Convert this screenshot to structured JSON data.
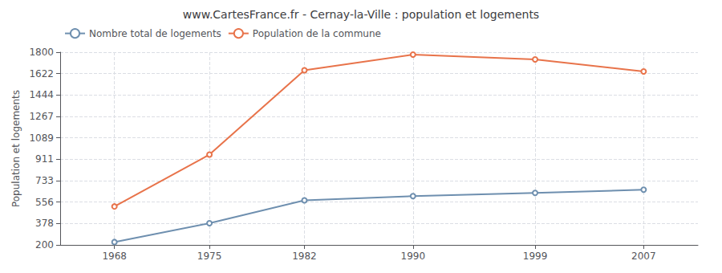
{
  "chart_data": {
    "type": "line",
    "title": "www.CartesFrance.fr - Cernay-la-Ville : population et logements",
    "ylabel": "Population et logements",
    "x": [
      1968,
      1975,
      1982,
      1990,
      1999,
      2007
    ],
    "series": [
      {
        "name": "Nombre total de logements",
        "color": "#6e8faf",
        "values": [
          224,
          380,
          570,
          605,
          632,
          658
        ]
      },
      {
        "name": "Population de la commune",
        "color": "#e8734a",
        "values": [
          519,
          950,
          1650,
          1780,
          1740,
          1640
        ]
      }
    ],
    "xlim": [
      1964,
      2011
    ],
    "xticks": [
      1968,
      1975,
      1982,
      1990,
      1999,
      2007
    ],
    "ylim": [
      200,
      1800
    ],
    "yticks": [
      200,
      378,
      556,
      733,
      911,
      1089,
      1267,
      1444,
      1622,
      1800
    ],
    "grid": true,
    "legend": "upper left",
    "marker": "circle"
  }
}
